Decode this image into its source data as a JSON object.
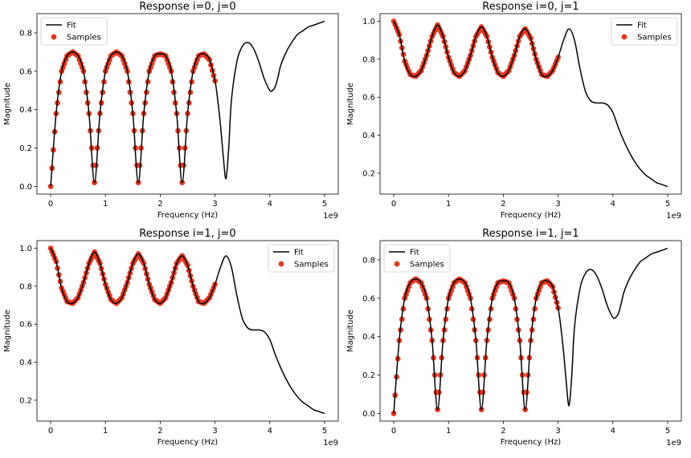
{
  "chart_data": [
    {
      "type": "line",
      "title": "Response i=0, j=0",
      "xlabel": "Frequency (Hz)",
      "ylabel": "Magnitude",
      "x_offset_label": "1e9",
      "xlim": [
        -0.25,
        5.25
      ],
      "ylim": [
        -0.04,
        0.9
      ],
      "xticks": [
        0,
        1,
        2,
        3,
        4,
        5
      ],
      "xtick_labels": [
        "0",
        "1",
        "2",
        "3",
        "4",
        "5"
      ],
      "yticks": [
        0.0,
        0.2,
        0.4,
        0.6,
        0.8
      ],
      "ytick_labels": [
        "0.0",
        "0.2",
        "0.4",
        "0.6",
        "0.8"
      ],
      "legend_position": "top-left",
      "series": [
        {
          "name": "Fit",
          "kind": "line",
          "color": "#000000",
          "x": [
            0.0,
            0.1,
            0.2,
            0.3,
            0.4,
            0.5,
            0.6,
            0.7,
            0.8,
            0.9,
            1.0,
            1.1,
            1.2,
            1.3,
            1.4,
            1.5,
            1.6,
            1.7,
            1.8,
            1.9,
            2.0,
            2.1,
            2.2,
            2.3,
            2.4,
            2.5,
            2.6,
            2.7,
            2.8,
            2.9,
            3.0,
            3.05,
            3.1,
            3.15,
            3.2,
            3.25,
            3.3,
            3.4,
            3.5,
            3.6,
            3.7,
            3.8,
            3.9,
            4.0,
            4.05,
            4.1,
            4.15,
            4.2,
            4.3,
            4.4,
            4.5,
            4.6,
            4.7,
            4.8,
            4.9,
            5.0
          ],
          "y": [
            0.0,
            0.38,
            0.6,
            0.68,
            0.7,
            0.68,
            0.6,
            0.38,
            0.02,
            0.38,
            0.6,
            0.68,
            0.7,
            0.68,
            0.6,
            0.38,
            0.02,
            0.38,
            0.6,
            0.68,
            0.69,
            0.68,
            0.6,
            0.38,
            0.02,
            0.38,
            0.6,
            0.68,
            0.69,
            0.66,
            0.55,
            0.45,
            0.32,
            0.16,
            0.04,
            0.2,
            0.45,
            0.65,
            0.73,
            0.75,
            0.72,
            0.65,
            0.56,
            0.5,
            0.5,
            0.52,
            0.57,
            0.63,
            0.7,
            0.75,
            0.79,
            0.81,
            0.83,
            0.84,
            0.85,
            0.86
          ]
        },
        {
          "name": "Samples",
          "kind": "scatter",
          "color": "#e8361e",
          "x_range": [
            0.0,
            3.0
          ],
          "x": [
            0.0,
            0.1,
            0.2,
            0.3,
            0.4,
            0.5,
            0.6,
            0.7,
            0.8,
            0.9,
            1.0,
            1.1,
            1.2,
            1.3,
            1.4,
            1.5,
            1.6,
            1.7,
            1.8,
            1.9,
            2.0,
            2.1,
            2.2,
            2.3,
            2.4,
            2.5,
            2.6,
            2.7,
            2.8,
            2.9,
            3.0
          ],
          "y": [
            0.0,
            0.38,
            0.6,
            0.68,
            0.7,
            0.68,
            0.6,
            0.38,
            0.02,
            0.38,
            0.6,
            0.68,
            0.7,
            0.68,
            0.6,
            0.38,
            0.02,
            0.38,
            0.6,
            0.68,
            0.69,
            0.68,
            0.6,
            0.38,
            0.02,
            0.38,
            0.6,
            0.68,
            0.69,
            0.66,
            0.55
          ]
        }
      ]
    },
    {
      "type": "line",
      "title": "Response i=0, j=1",
      "xlabel": "Frequency (Hz)",
      "ylabel": "Magnitude",
      "x_offset_label": "1e9",
      "xlim": [
        -0.25,
        5.25
      ],
      "ylim": [
        0.09,
        1.04
      ],
      "xticks": [
        0,
        1,
        2,
        3,
        4,
        5
      ],
      "xtick_labels": [
        "0",
        "1",
        "2",
        "3",
        "4",
        "5"
      ],
      "yticks": [
        0.2,
        0.4,
        0.6,
        0.8,
        1.0
      ],
      "ytick_labels": [
        "0.2",
        "0.4",
        "0.6",
        "0.8",
        "1.0"
      ],
      "legend_position": "top-right",
      "series": [
        {
          "name": "Fit",
          "kind": "line",
          "color": "#000000",
          "x": [
            0.0,
            0.1,
            0.2,
            0.3,
            0.4,
            0.5,
            0.6,
            0.7,
            0.8,
            0.9,
            1.0,
            1.1,
            1.2,
            1.3,
            1.4,
            1.5,
            1.6,
            1.7,
            1.8,
            1.9,
            2.0,
            2.1,
            2.2,
            2.3,
            2.4,
            2.5,
            2.6,
            2.7,
            2.8,
            2.9,
            3.0,
            3.1,
            3.2,
            3.3,
            3.4,
            3.5,
            3.6,
            3.7,
            3.8,
            3.9,
            4.0,
            4.1,
            4.2,
            4.3,
            4.4,
            4.5,
            4.6,
            4.7,
            4.8,
            4.9,
            5.0
          ],
          "y": [
            1.0,
            0.93,
            0.79,
            0.72,
            0.71,
            0.74,
            0.82,
            0.92,
            0.98,
            0.92,
            0.81,
            0.73,
            0.71,
            0.74,
            0.82,
            0.92,
            0.97,
            0.92,
            0.81,
            0.73,
            0.71,
            0.74,
            0.82,
            0.92,
            0.96,
            0.91,
            0.8,
            0.72,
            0.71,
            0.74,
            0.81,
            0.9,
            0.96,
            0.9,
            0.75,
            0.63,
            0.58,
            0.57,
            0.57,
            0.56,
            0.52,
            0.44,
            0.37,
            0.31,
            0.26,
            0.22,
            0.19,
            0.17,
            0.15,
            0.14,
            0.13
          ]
        },
        {
          "name": "Samples",
          "kind": "scatter",
          "color": "#e8361e",
          "x_range": [
            0.0,
            3.0
          ],
          "x": [
            0.0,
            0.1,
            0.2,
            0.3,
            0.4,
            0.5,
            0.6,
            0.7,
            0.8,
            0.9,
            1.0,
            1.1,
            1.2,
            1.3,
            1.4,
            1.5,
            1.6,
            1.7,
            1.8,
            1.9,
            2.0,
            2.1,
            2.2,
            2.3,
            2.4,
            2.5,
            2.6,
            2.7,
            2.8,
            2.9,
            3.0
          ],
          "y": [
            1.0,
            0.93,
            0.79,
            0.72,
            0.71,
            0.74,
            0.82,
            0.92,
            0.98,
            0.92,
            0.81,
            0.73,
            0.71,
            0.74,
            0.82,
            0.92,
            0.97,
            0.92,
            0.81,
            0.73,
            0.71,
            0.74,
            0.82,
            0.92,
            0.96,
            0.91,
            0.8,
            0.72,
            0.71,
            0.74,
            0.81
          ]
        }
      ]
    },
    {
      "type": "line",
      "title": "Response i=1, j=0",
      "xlabel": "Frequency (Hz)",
      "ylabel": "Magnitude",
      "x_offset_label": "1e9",
      "xlim": [
        -0.25,
        5.25
      ],
      "ylim": [
        0.09,
        1.04
      ],
      "xticks": [
        0,
        1,
        2,
        3,
        4,
        5
      ],
      "xtick_labels": [
        "0",
        "1",
        "2",
        "3",
        "4",
        "5"
      ],
      "yticks": [
        0.2,
        0.4,
        0.6,
        0.8,
        1.0
      ],
      "ytick_labels": [
        "0.2",
        "0.4",
        "0.6",
        "0.8",
        "1.0"
      ],
      "legend_position": "top-right",
      "series": [
        {
          "name": "Fit",
          "kind": "line",
          "color": "#000000",
          "x": [
            0.0,
            0.1,
            0.2,
            0.3,
            0.4,
            0.5,
            0.6,
            0.7,
            0.8,
            0.9,
            1.0,
            1.1,
            1.2,
            1.3,
            1.4,
            1.5,
            1.6,
            1.7,
            1.8,
            1.9,
            2.0,
            2.1,
            2.2,
            2.3,
            2.4,
            2.5,
            2.6,
            2.7,
            2.8,
            2.9,
            3.0,
            3.1,
            3.2,
            3.3,
            3.4,
            3.5,
            3.6,
            3.7,
            3.8,
            3.9,
            4.0,
            4.1,
            4.2,
            4.3,
            4.4,
            4.5,
            4.6,
            4.7,
            4.8,
            4.9,
            5.0
          ],
          "y": [
            1.0,
            0.93,
            0.79,
            0.72,
            0.71,
            0.74,
            0.82,
            0.92,
            0.98,
            0.92,
            0.81,
            0.73,
            0.71,
            0.74,
            0.82,
            0.92,
            0.97,
            0.92,
            0.81,
            0.73,
            0.71,
            0.74,
            0.82,
            0.92,
            0.96,
            0.91,
            0.8,
            0.72,
            0.71,
            0.74,
            0.81,
            0.9,
            0.96,
            0.9,
            0.75,
            0.63,
            0.58,
            0.57,
            0.57,
            0.56,
            0.52,
            0.44,
            0.37,
            0.31,
            0.26,
            0.22,
            0.19,
            0.17,
            0.15,
            0.14,
            0.13
          ]
        },
        {
          "name": "Samples",
          "kind": "scatter",
          "color": "#e8361e",
          "x_range": [
            0.0,
            3.0
          ],
          "x": [
            0.0,
            0.1,
            0.2,
            0.3,
            0.4,
            0.5,
            0.6,
            0.7,
            0.8,
            0.9,
            1.0,
            1.1,
            1.2,
            1.3,
            1.4,
            1.5,
            1.6,
            1.7,
            1.8,
            1.9,
            2.0,
            2.1,
            2.2,
            2.3,
            2.4,
            2.5,
            2.6,
            2.7,
            2.8,
            2.9,
            3.0
          ],
          "y": [
            1.0,
            0.93,
            0.79,
            0.72,
            0.71,
            0.74,
            0.82,
            0.92,
            0.98,
            0.92,
            0.81,
            0.73,
            0.71,
            0.74,
            0.82,
            0.92,
            0.97,
            0.92,
            0.81,
            0.73,
            0.71,
            0.74,
            0.82,
            0.92,
            0.96,
            0.91,
            0.8,
            0.72,
            0.71,
            0.74,
            0.81
          ]
        }
      ]
    },
    {
      "type": "line",
      "title": "Response i=1, j=1",
      "xlabel": "Frequency (Hz)",
      "ylabel": "Magnitude",
      "x_offset_label": "1e9",
      "xlim": [
        -0.25,
        5.25
      ],
      "ylim": [
        -0.04,
        0.9
      ],
      "xticks": [
        0,
        1,
        2,
        3,
        4,
        5
      ],
      "xtick_labels": [
        "0",
        "1",
        "2",
        "3",
        "4",
        "5"
      ],
      "yticks": [
        0.0,
        0.2,
        0.4,
        0.6,
        0.8
      ],
      "ytick_labels": [
        "0.0",
        "0.2",
        "0.4",
        "0.6",
        "0.8"
      ],
      "legend_position": "top-left",
      "series": [
        {
          "name": "Fit",
          "kind": "line",
          "color": "#000000",
          "x": [
            0.0,
            0.1,
            0.2,
            0.3,
            0.4,
            0.5,
            0.6,
            0.7,
            0.8,
            0.9,
            1.0,
            1.1,
            1.2,
            1.3,
            1.4,
            1.5,
            1.6,
            1.7,
            1.8,
            1.9,
            2.0,
            2.1,
            2.2,
            2.3,
            2.4,
            2.5,
            2.6,
            2.7,
            2.8,
            2.9,
            3.0,
            3.05,
            3.1,
            3.15,
            3.2,
            3.25,
            3.3,
            3.4,
            3.5,
            3.6,
            3.7,
            3.8,
            3.9,
            4.0,
            4.05,
            4.1,
            4.15,
            4.2,
            4.3,
            4.4,
            4.5,
            4.6,
            4.7,
            4.8,
            4.9,
            5.0
          ],
          "y": [
            0.0,
            0.38,
            0.6,
            0.68,
            0.7,
            0.68,
            0.6,
            0.38,
            0.02,
            0.38,
            0.6,
            0.68,
            0.7,
            0.68,
            0.6,
            0.38,
            0.02,
            0.38,
            0.6,
            0.68,
            0.69,
            0.68,
            0.6,
            0.38,
            0.02,
            0.38,
            0.6,
            0.68,
            0.69,
            0.66,
            0.55,
            0.45,
            0.32,
            0.16,
            0.04,
            0.2,
            0.45,
            0.65,
            0.73,
            0.75,
            0.72,
            0.65,
            0.56,
            0.5,
            0.5,
            0.52,
            0.57,
            0.63,
            0.7,
            0.75,
            0.79,
            0.81,
            0.83,
            0.84,
            0.85,
            0.86
          ]
        },
        {
          "name": "Samples",
          "kind": "scatter",
          "color": "#e8361e",
          "x_range": [
            0.0,
            3.0
          ],
          "x": [
            0.0,
            0.1,
            0.2,
            0.3,
            0.4,
            0.5,
            0.6,
            0.7,
            0.8,
            0.9,
            1.0,
            1.1,
            1.2,
            1.3,
            1.4,
            1.5,
            1.6,
            1.7,
            1.8,
            1.9,
            2.0,
            2.1,
            2.2,
            2.3,
            2.4,
            2.5,
            2.6,
            2.7,
            2.8,
            2.9,
            3.0
          ],
          "y": [
            0.0,
            0.38,
            0.6,
            0.68,
            0.7,
            0.68,
            0.6,
            0.38,
            0.02,
            0.38,
            0.6,
            0.68,
            0.7,
            0.68,
            0.6,
            0.38,
            0.02,
            0.38,
            0.6,
            0.68,
            0.69,
            0.68,
            0.6,
            0.38,
            0.02,
            0.38,
            0.6,
            0.68,
            0.69,
            0.66,
            0.55
          ]
        }
      ]
    }
  ]
}
